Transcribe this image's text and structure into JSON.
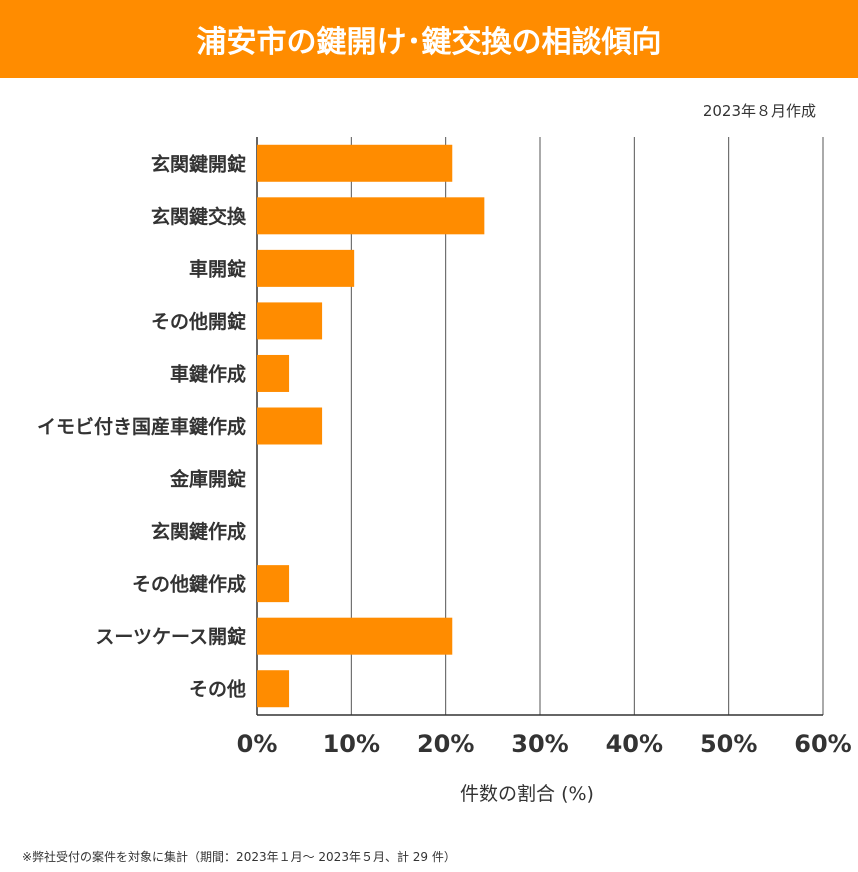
{
  "header": {
    "title": "浦安市の鍵開け･鍵交換の相談傾向"
  },
  "date_note": "2023年８月作成",
  "footnote": "※弊社受付の案件を対象に集計（期間：2023年１月～ 2023年５月、計 29 件）",
  "colors": {
    "bar": "#FF8C00",
    "grid": "#555555"
  },
  "chart_data": {
    "type": "bar",
    "orientation": "horizontal",
    "title": "浦安市の鍵開け･鍵交換の相談傾向",
    "categories": [
      "玄関鍵開錠",
      "玄関鍵交換",
      "車開錠",
      "その他開錠",
      "車鍵作成",
      "イモビ付き国産車鍵作成",
      "金庫開錠",
      "玄関鍵作成",
      "その他鍵作成",
      "スーツケース開錠",
      "その他"
    ],
    "values": [
      20.7,
      24.1,
      10.3,
      6.9,
      3.4,
      6.9,
      0,
      0,
      3.4,
      20.7,
      3.4
    ],
    "xlabel": "件数の割合 (%)",
    "ylabel": "",
    "xlim": [
      0,
      60
    ],
    "xticks": [
      "0%",
      "10%",
      "20%",
      "30%",
      "40%",
      "50%",
      "60%"
    ],
    "grid": true
  }
}
